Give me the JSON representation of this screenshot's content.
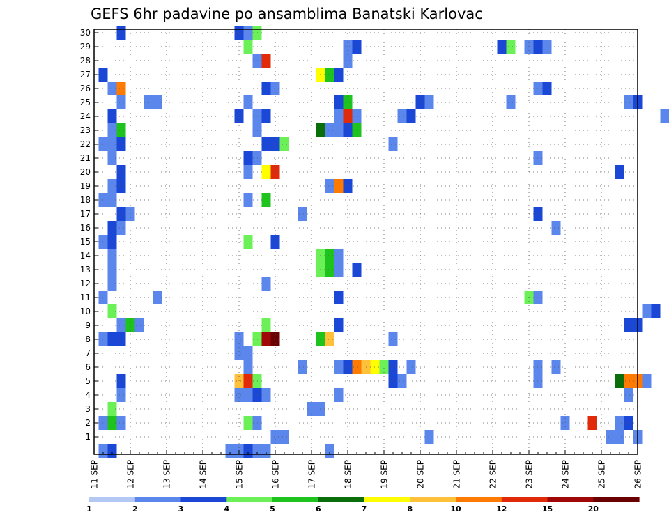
{
  "chart_data": {
    "type": "heatmap",
    "title": "GEFS 6hr padavine po ansamblima Banatski Karlovac",
    "y_ticks": [
      "1",
      "2",
      "3",
      "4",
      "5",
      "6",
      "7",
      "8",
      "9",
      "10",
      "11",
      "12",
      "13",
      "14",
      "15",
      "16",
      "17",
      "18",
      "19",
      "20",
      "21",
      "22",
      "23",
      "24",
      "25",
      "26",
      "27",
      "28",
      "29",
      "30"
    ],
    "x_ticks": [
      "11 SEP",
      "12 SEP",
      "13 SEP",
      "14 SEP",
      "15 SEP",
      "16 SEP",
      "17 SEP",
      "18 SEP",
      "19 SEP",
      "20 SEP",
      "21 SEP",
      "22 SEP",
      "23 SEP",
      "24 SEP",
      "25 SEP",
      "26 SEP"
    ],
    "x_days": [
      11,
      12,
      13,
      14,
      15,
      16,
      17,
      18,
      19,
      20,
      21,
      22,
      23,
      24,
      25,
      26
    ],
    "xlim_days": [
      11,
      26
    ],
    "ylim_members": [
      0,
      30
    ],
    "grid": true,
    "colorbar_labels": [
      "1",
      "2",
      "3",
      "4",
      "5",
      "6",
      "7",
      "8",
      "10",
      "12",
      "15",
      "20"
    ],
    "colorbar_colors": [
      "#b3c8f5",
      "#5b86ec",
      "#1a47d6",
      "#6cf058",
      "#1ec31e",
      "#0a6e0a",
      "#ffff00",
      "#ffc03a",
      "#ff7a00",
      "#e02a0a",
      "#a00808",
      "#6a0000"
    ],
    "cells": [
      [
        11.25,
        0,
        2
      ],
      [
        11.5,
        0,
        3
      ],
      [
        14.75,
        0,
        2
      ],
      [
        15,
        0,
        2
      ],
      [
        15.25,
        0,
        3
      ],
      [
        15.5,
        0,
        2
      ],
      [
        15.75,
        0,
        2
      ],
      [
        17.5,
        0,
        2
      ],
      [
        16,
        1,
        2
      ],
      [
        16.25,
        1,
        2
      ],
      [
        20.25,
        1,
        2
      ],
      [
        25.25,
        1,
        2
      ],
      [
        25.5,
        1,
        2
      ],
      [
        26,
        1,
        2
      ],
      [
        11.5,
        2,
        5
      ],
      [
        11.75,
        2,
        2
      ],
      [
        11.25,
        2,
        2
      ],
      [
        15.25,
        2,
        4
      ],
      [
        15.5,
        2,
        2
      ],
      [
        24,
        2,
        2
      ],
      [
        24.75,
        2,
        12
      ],
      [
        25.5,
        2,
        2
      ],
      [
        25.75,
        2,
        3
      ],
      [
        11.5,
        3,
        4
      ],
      [
        17,
        3,
        2
      ],
      [
        17.25,
        3,
        2
      ],
      [
        11.75,
        4,
        2
      ],
      [
        15,
        4,
        2
      ],
      [
        15.25,
        4,
        2
      ],
      [
        15.5,
        4,
        3
      ],
      [
        15.75,
        4,
        2
      ],
      [
        17.75,
        4,
        2
      ],
      [
        25.75,
        4,
        2
      ],
      [
        11.75,
        5,
        3
      ],
      [
        15,
        5,
        8
      ],
      [
        15.25,
        5,
        12
      ],
      [
        15.5,
        5,
        4
      ],
      [
        19.25,
        5,
        3
      ],
      [
        19.5,
        5,
        2
      ],
      [
        23.25,
        5,
        2
      ],
      [
        25.5,
        5,
        6
      ],
      [
        25.75,
        5,
        10
      ],
      [
        26,
        5,
        10
      ],
      [
        26.25,
        5,
        2
      ],
      [
        15.25,
        6,
        2
      ],
      [
        16.75,
        6,
        2
      ],
      [
        17.75,
        6,
        2
      ],
      [
        18,
        6,
        3
      ],
      [
        18.25,
        6,
        10
      ],
      [
        18.5,
        6,
        8
      ],
      [
        18.75,
        6,
        7
      ],
      [
        19,
        6,
        4
      ],
      [
        19.25,
        6,
        3
      ],
      [
        19.75,
        6,
        2
      ],
      [
        23.25,
        6,
        2
      ],
      [
        23.75,
        6,
        2
      ],
      [
        15,
        7,
        2
      ],
      [
        15.25,
        7,
        2
      ],
      [
        11.25,
        8,
        2
      ],
      [
        11.5,
        8,
        3
      ],
      [
        11.75,
        8,
        3
      ],
      [
        15,
        8,
        2
      ],
      [
        15.5,
        8,
        4
      ],
      [
        15.75,
        8,
        15
      ],
      [
        16,
        8,
        20
      ],
      [
        17.25,
        8,
        5
      ],
      [
        17.5,
        8,
        8
      ],
      [
        19.25,
        8,
        2
      ],
      [
        11.75,
        9,
        2
      ],
      [
        12,
        9,
        5
      ],
      [
        12.25,
        9,
        2
      ],
      [
        15.75,
        9,
        4
      ],
      [
        17.75,
        9,
        3
      ],
      [
        25.75,
        9,
        3
      ],
      [
        26,
        9,
        3
      ],
      [
        11.5,
        10,
        4
      ],
      [
        26.25,
        10,
        2
      ],
      [
        26.5,
        10,
        3
      ],
      [
        11.25,
        11,
        2
      ],
      [
        12.75,
        11,
        2
      ],
      [
        17.75,
        11,
        3
      ],
      [
        23,
        11,
        4
      ],
      [
        23.25,
        11,
        2
      ],
      [
        11.5,
        12,
        2
      ],
      [
        15.75,
        12,
        2
      ],
      [
        11.5,
        13,
        2
      ],
      [
        17.25,
        13,
        4
      ],
      [
        17.5,
        13,
        5
      ],
      [
        17.75,
        13,
        2
      ],
      [
        18.25,
        13,
        3
      ],
      [
        11.5,
        14,
        2
      ],
      [
        17.25,
        14,
        4
      ],
      [
        17.5,
        14,
        5
      ],
      [
        17.75,
        14,
        2
      ],
      [
        11.25,
        15,
        2
      ],
      [
        11.5,
        15,
        3
      ],
      [
        15.25,
        15,
        4
      ],
      [
        16,
        15,
        3
      ],
      [
        11.5,
        16,
        3
      ],
      [
        11.75,
        16,
        2
      ],
      [
        23.75,
        16,
        2
      ],
      [
        11.75,
        17,
        3
      ],
      [
        12,
        17,
        2
      ],
      [
        16.75,
        17,
        2
      ],
      [
        23.25,
        17,
        3
      ],
      [
        11.25,
        18,
        2
      ],
      [
        11.5,
        18,
        2
      ],
      [
        15.25,
        18,
        2
      ],
      [
        15.75,
        18,
        5
      ],
      [
        11.5,
        19,
        2
      ],
      [
        11.75,
        19,
        3
      ],
      [
        17.5,
        19,
        2
      ],
      [
        17.75,
        19,
        10
      ],
      [
        18,
        19,
        3
      ],
      [
        11.75,
        20,
        3
      ],
      [
        15.25,
        20,
        2
      ],
      [
        15.75,
        20,
        7
      ],
      [
        16,
        20,
        12
      ],
      [
        25.5,
        20,
        3
      ],
      [
        11.5,
        21,
        2
      ],
      [
        15.25,
        21,
        3
      ],
      [
        15.5,
        21,
        2
      ],
      [
        23.25,
        21,
        2
      ],
      [
        11.25,
        22,
        2
      ],
      [
        11.5,
        22,
        2
      ],
      [
        11.75,
        22,
        3
      ],
      [
        15.75,
        22,
        3
      ],
      [
        16,
        22,
        3
      ],
      [
        16.25,
        22,
        4
      ],
      [
        19.25,
        22,
        2
      ],
      [
        11.5,
        23,
        2
      ],
      [
        11.75,
        23,
        5
      ],
      [
        15.5,
        23,
        2
      ],
      [
        17.25,
        23,
        6
      ],
      [
        17.5,
        23,
        2
      ],
      [
        17.75,
        23,
        2
      ],
      [
        18,
        23,
        3
      ],
      [
        18.25,
        23,
        5
      ],
      [
        11.5,
        24,
        3
      ],
      [
        15,
        24,
        3
      ],
      [
        15.5,
        24,
        2
      ],
      [
        15.75,
        24,
        3
      ],
      [
        17.75,
        24,
        2
      ],
      [
        18,
        24,
        12
      ],
      [
        18.25,
        24,
        2
      ],
      [
        19.5,
        24,
        2
      ],
      [
        19.75,
        24,
        3
      ],
      [
        26.75,
        24,
        2
      ],
      [
        11.75,
        25,
        2
      ],
      [
        12.5,
        25,
        2
      ],
      [
        12.75,
        25,
        2
      ],
      [
        15.25,
        25,
        2
      ],
      [
        17.75,
        25,
        3
      ],
      [
        18,
        25,
        5
      ],
      [
        20,
        25,
        3
      ],
      [
        20.25,
        25,
        2
      ],
      [
        22.5,
        25,
        2
      ],
      [
        25.75,
        25,
        2
      ],
      [
        26,
        25,
        3
      ],
      [
        11.5,
        26,
        2
      ],
      [
        11.75,
        26,
        10
      ],
      [
        15.75,
        26,
        3
      ],
      [
        16,
        26,
        2
      ],
      [
        23.25,
        26,
        2
      ],
      [
        23.5,
        26,
        3
      ],
      [
        11.25,
        27,
        3
      ],
      [
        17.25,
        27,
        7
      ],
      [
        17.5,
        27,
        5
      ],
      [
        17.75,
        27,
        3
      ],
      [
        15.5,
        28,
        2
      ],
      [
        15.75,
        28,
        12
      ],
      [
        18,
        28,
        2
      ],
      [
        15.25,
        29,
        4
      ],
      [
        18,
        29,
        2
      ],
      [
        18.25,
        29,
        3
      ],
      [
        22.25,
        29,
        3
      ],
      [
        22.5,
        29,
        4
      ],
      [
        23,
        29,
        2
      ],
      [
        23.25,
        29,
        3
      ],
      [
        23.5,
        29,
        2
      ],
      [
        11.75,
        30,
        3
      ],
      [
        15,
        30,
        3
      ],
      [
        15.25,
        30,
        2
      ],
      [
        15.5,
        30,
        4
      ]
    ]
  }
}
